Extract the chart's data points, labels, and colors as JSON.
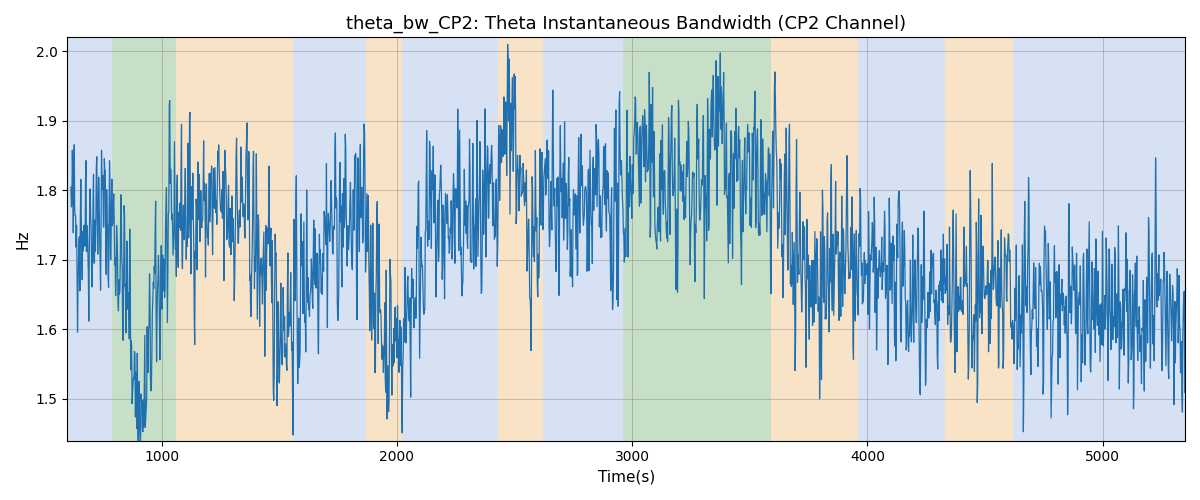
{
  "title": "theta_bw_CP2: Theta Instantaneous Bandwidth (CP2 Channel)",
  "xlabel": "Time(s)",
  "ylabel": "Hz",
  "xlim": [
    600,
    5350
  ],
  "ylim": [
    1.44,
    2.02
  ],
  "yticks": [
    1.5,
    1.6,
    1.7,
    1.8,
    1.9,
    2.0
  ],
  "xticks": [
    1000,
    2000,
    3000,
    4000,
    5000
  ],
  "line_color": "#2070b0",
  "line_width": 0.9,
  "bg_regions": [
    {
      "xstart": 600,
      "xend": 790,
      "color": "#aec6e8",
      "alpha": 0.5
    },
    {
      "xstart": 790,
      "xend": 1060,
      "color": "#90c090",
      "alpha": 0.5
    },
    {
      "xstart": 1060,
      "xend": 1560,
      "color": "#f5c890",
      "alpha": 0.5
    },
    {
      "xstart": 1560,
      "xend": 1870,
      "color": "#aec6e8",
      "alpha": 0.5
    },
    {
      "xstart": 1870,
      "xend": 2020,
      "color": "#f5c890",
      "alpha": 0.5
    },
    {
      "xstart": 2020,
      "xend": 2430,
      "color": "#aec6e8",
      "alpha": 0.5
    },
    {
      "xstart": 2430,
      "xend": 2620,
      "color": "#f5c890",
      "alpha": 0.5
    },
    {
      "xstart": 2620,
      "xend": 2960,
      "color": "#aec6e8",
      "alpha": 0.5
    },
    {
      "xstart": 2960,
      "xend": 3590,
      "color": "#90c090",
      "alpha": 0.5
    },
    {
      "xstart": 3590,
      "xend": 3960,
      "color": "#f5c890",
      "alpha": 0.5
    },
    {
      "xstart": 3960,
      "xend": 4330,
      "color": "#aec6e8",
      "alpha": 0.5
    },
    {
      "xstart": 4330,
      "xend": 4620,
      "color": "#f5c890",
      "alpha": 0.5
    },
    {
      "xstart": 4620,
      "xend": 5350,
      "color": "#aec6e8",
      "alpha": 0.5
    }
  ],
  "seed": 42,
  "t_start": 615,
  "t_end": 5350,
  "dt": 2,
  "title_fontsize": 13,
  "label_fontsize": 11,
  "figsize": [
    12,
    5
  ],
  "dpi": 100
}
